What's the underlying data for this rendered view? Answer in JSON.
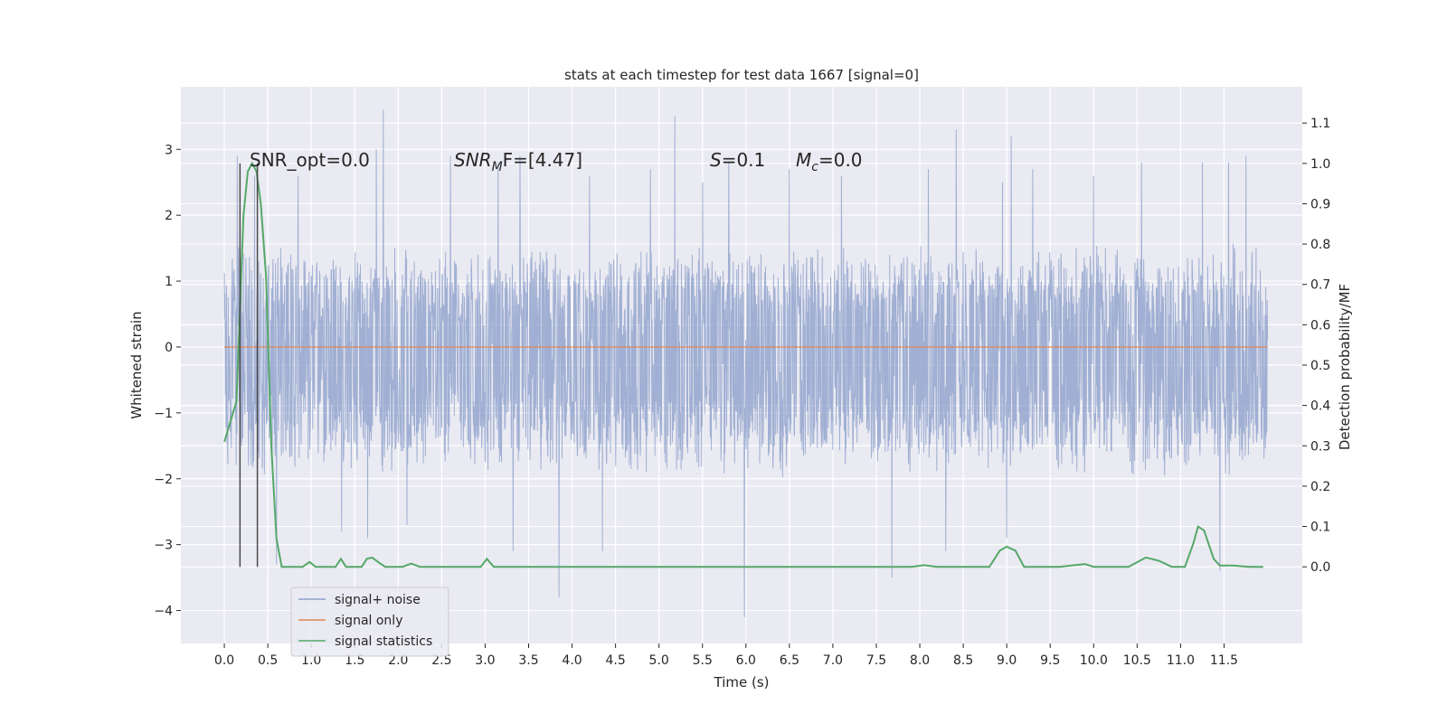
{
  "chart_data": {
    "type": "line",
    "title": "stats at each timestep for test data 1667 [signal=0]",
    "xlabel": "Time (s)",
    "ylabel": "Whitened strain",
    "y2label": "Detection probability/MF",
    "xlim": [
      -0.5,
      12.4
    ],
    "ylim": [
      -4.5,
      3.95
    ],
    "y2lim": [
      -0.19,
      1.19
    ],
    "xticks": [
      "0.0",
      "0.5",
      "1.0",
      "1.5",
      "2.0",
      "2.5",
      "3.0",
      "3.5",
      "4.0",
      "4.5",
      "5.0",
      "5.5",
      "6.0",
      "6.5",
      "7.0",
      "7.5",
      "8.0",
      "8.5",
      "9.0",
      "9.5",
      "10.0",
      "10.5",
      "11.0",
      "11.5"
    ],
    "yticks": [
      "3",
      "2",
      "1",
      "0",
      "−1",
      "−2",
      "−3",
      "−4"
    ],
    "y2ticks": [
      "1.1",
      "1.0",
      "0.9",
      "0.8",
      "0.7",
      "0.6",
      "0.5",
      "0.4",
      "0.3",
      "0.2",
      "0.1",
      "0.0"
    ],
    "annotations": {
      "snr_opt": "SNR_opt=0.0",
      "snr_mf_base": "SNR",
      "snr_mf_sub": "M",
      "snr_mf_rest": "F=[4.47]",
      "s_base": "S",
      "s_rest": "=0.1",
      "mc_base": "M",
      "mc_sub": "c",
      "mc_rest": "=0.0"
    },
    "series": [
      {
        "name": "signal+ noise",
        "color": "#8da0cb",
        "amplitude_range": [
          -1.7,
          1.35
        ],
        "peaks": [
          [
            0.15,
            2.9
          ],
          [
            0.35,
            2.6
          ],
          [
            0.6,
            -3.3
          ],
          [
            0.85,
            2.6
          ],
          [
            1.35,
            -2.8
          ],
          [
            1.65,
            -2.9
          ],
          [
            1.75,
            3.0
          ],
          [
            1.83,
            3.6
          ],
          [
            2.1,
            -2.7
          ],
          [
            2.6,
            2.9
          ],
          [
            3.15,
            2.8
          ],
          [
            3.32,
            -3.1
          ],
          [
            3.4,
            2.9
          ],
          [
            3.85,
            -3.8
          ],
          [
            4.2,
            2.6
          ],
          [
            4.35,
            -3.1
          ],
          [
            4.9,
            2.7
          ],
          [
            5.18,
            3.5
          ],
          [
            5.5,
            2.5
          ],
          [
            5.8,
            2.8
          ],
          [
            5.98,
            -4.1
          ],
          [
            6.5,
            2.7
          ],
          [
            7.1,
            2.6
          ],
          [
            7.68,
            -3.5
          ],
          [
            8.1,
            2.7
          ],
          [
            8.3,
            -3.1
          ],
          [
            8.42,
            3.3
          ],
          [
            8.95,
            2.5
          ],
          [
            9.0,
            -2.9
          ],
          [
            9.05,
            3.2
          ],
          [
            9.3,
            2.7
          ],
          [
            10.0,
            2.6
          ],
          [
            10.55,
            2.8
          ],
          [
            11.25,
            2.8
          ],
          [
            11.45,
            -3.4
          ],
          [
            11.55,
            2.8
          ],
          [
            11.75,
            2.9
          ]
        ]
      },
      {
        "name": "signal only",
        "color": "#dd8452",
        "values": [
          [
            0.0,
            0.0
          ],
          [
            12.0,
            0.0
          ]
        ]
      },
      {
        "name": "signal statistics",
        "color": "#55a868",
        "axis": "right",
        "values": [
          [
            0.0,
            0.31
          ],
          [
            0.14,
            0.41
          ],
          [
            0.22,
            0.87
          ],
          [
            0.27,
            0.98
          ],
          [
            0.32,
            1.0
          ],
          [
            0.37,
            0.98
          ],
          [
            0.42,
            0.9
          ],
          [
            0.48,
            0.72
          ],
          [
            0.54,
            0.3
          ],
          [
            0.6,
            0.07
          ],
          [
            0.66,
            0.0
          ],
          [
            0.9,
            0.0
          ],
          [
            0.98,
            0.012
          ],
          [
            1.05,
            0.0
          ],
          [
            1.28,
            0.0
          ],
          [
            1.34,
            0.02
          ],
          [
            1.4,
            0.0
          ],
          [
            1.58,
            0.0
          ],
          [
            1.64,
            0.02
          ],
          [
            1.7,
            0.023
          ],
          [
            1.78,
            0.01
          ],
          [
            1.85,
            0.0
          ],
          [
            2.05,
            0.0
          ],
          [
            2.15,
            0.008
          ],
          [
            2.25,
            0.0
          ],
          [
            2.95,
            0.0
          ],
          [
            3.02,
            0.02
          ],
          [
            3.1,
            0.0
          ],
          [
            5.0,
            0.0
          ],
          [
            7.5,
            0.0
          ],
          [
            7.9,
            0.0
          ],
          [
            8.05,
            0.004
          ],
          [
            8.2,
            0.0
          ],
          [
            8.8,
            0.0
          ],
          [
            8.92,
            0.04
          ],
          [
            9.0,
            0.05
          ],
          [
            9.1,
            0.04
          ],
          [
            9.2,
            0.0
          ],
          [
            9.6,
            0.0
          ],
          [
            9.9,
            0.007
          ],
          [
            10.0,
            0.0
          ],
          [
            10.4,
            0.0
          ],
          [
            10.6,
            0.023
          ],
          [
            10.75,
            0.015
          ],
          [
            10.9,
            0.0
          ],
          [
            11.05,
            0.0
          ],
          [
            11.15,
            0.06
          ],
          [
            11.2,
            0.1
          ],
          [
            11.27,
            0.09
          ],
          [
            11.38,
            0.02
          ],
          [
            11.45,
            0.003
          ],
          [
            11.6,
            0.003
          ],
          [
            11.8,
            0.0
          ],
          [
            11.95,
            0.0
          ]
        ]
      }
    ],
    "vlines": [
      0.18,
      0.38
    ],
    "grid": true,
    "legend": "lower-left",
    "background": "#eaeaf2"
  }
}
